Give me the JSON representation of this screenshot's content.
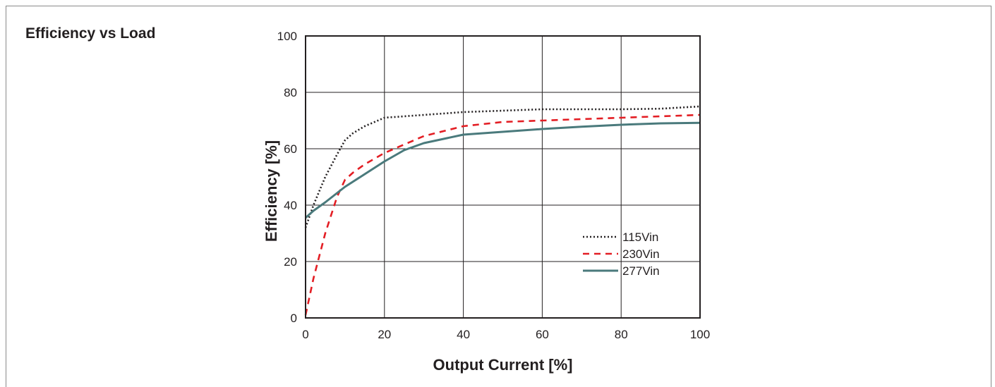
{
  "panel": {
    "title": "Efficiency vs Load"
  },
  "chart_data": {
    "type": "line",
    "title": "Efficiency vs Load",
    "xlabel": "Output Current [%]",
    "ylabel": "Efficiency [%]",
    "xlim": [
      0,
      100
    ],
    "ylim": [
      0,
      100
    ],
    "xticks": [
      0,
      20,
      40,
      60,
      80,
      100
    ],
    "yticks": [
      0,
      20,
      40,
      60,
      80,
      100
    ],
    "grid": true,
    "legend_position": "lower-right",
    "series": [
      {
        "name": "115Vin",
        "color": "#231f20",
        "style": "dotted",
        "x": [
          0,
          2,
          5,
          8,
          10,
          12,
          15,
          20,
          30,
          40,
          50,
          60,
          70,
          80,
          90,
          100
        ],
        "y": [
          32,
          40,
          50,
          58,
          63,
          65.5,
          68,
          71,
          72,
          73,
          73.5,
          74,
          74,
          74,
          74.2,
          75
        ]
      },
      {
        "name": "230Vin",
        "color": "#e31e24",
        "style": "dashed",
        "x": [
          0,
          2,
          5,
          8,
          10,
          12,
          15,
          20,
          25,
          30,
          40,
          50,
          60,
          70,
          80,
          90,
          100
        ],
        "y": [
          1,
          14,
          30,
          43,
          49,
          51.5,
          54.5,
          58.5,
          61.5,
          64.5,
          68,
          69.5,
          70,
          70.5,
          71,
          71.5,
          72
        ]
      },
      {
        "name": "277Vin",
        "color": "#4a7a7c",
        "style": "solid",
        "x": [
          0,
          2,
          5,
          10,
          15,
          20,
          25,
          30,
          40,
          50,
          60,
          70,
          80,
          90,
          100
        ],
        "y": [
          35.5,
          38,
          41,
          46.5,
          51,
          55.5,
          59.5,
          62,
          65,
          66,
          67,
          67.8,
          68.5,
          69,
          69.2
        ]
      }
    ]
  }
}
